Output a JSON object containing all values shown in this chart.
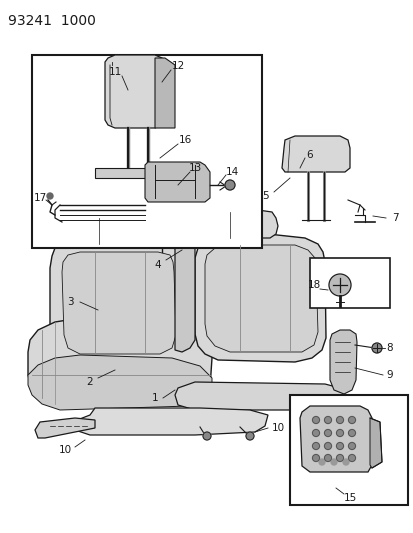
{
  "title": "93241  1000",
  "bg_color": "#ffffff",
  "line_color": "#1a1a1a",
  "gray_fill": "#d8d8d8",
  "light_gray": "#eeeeee",
  "mid_gray": "#b8b8b8"
}
